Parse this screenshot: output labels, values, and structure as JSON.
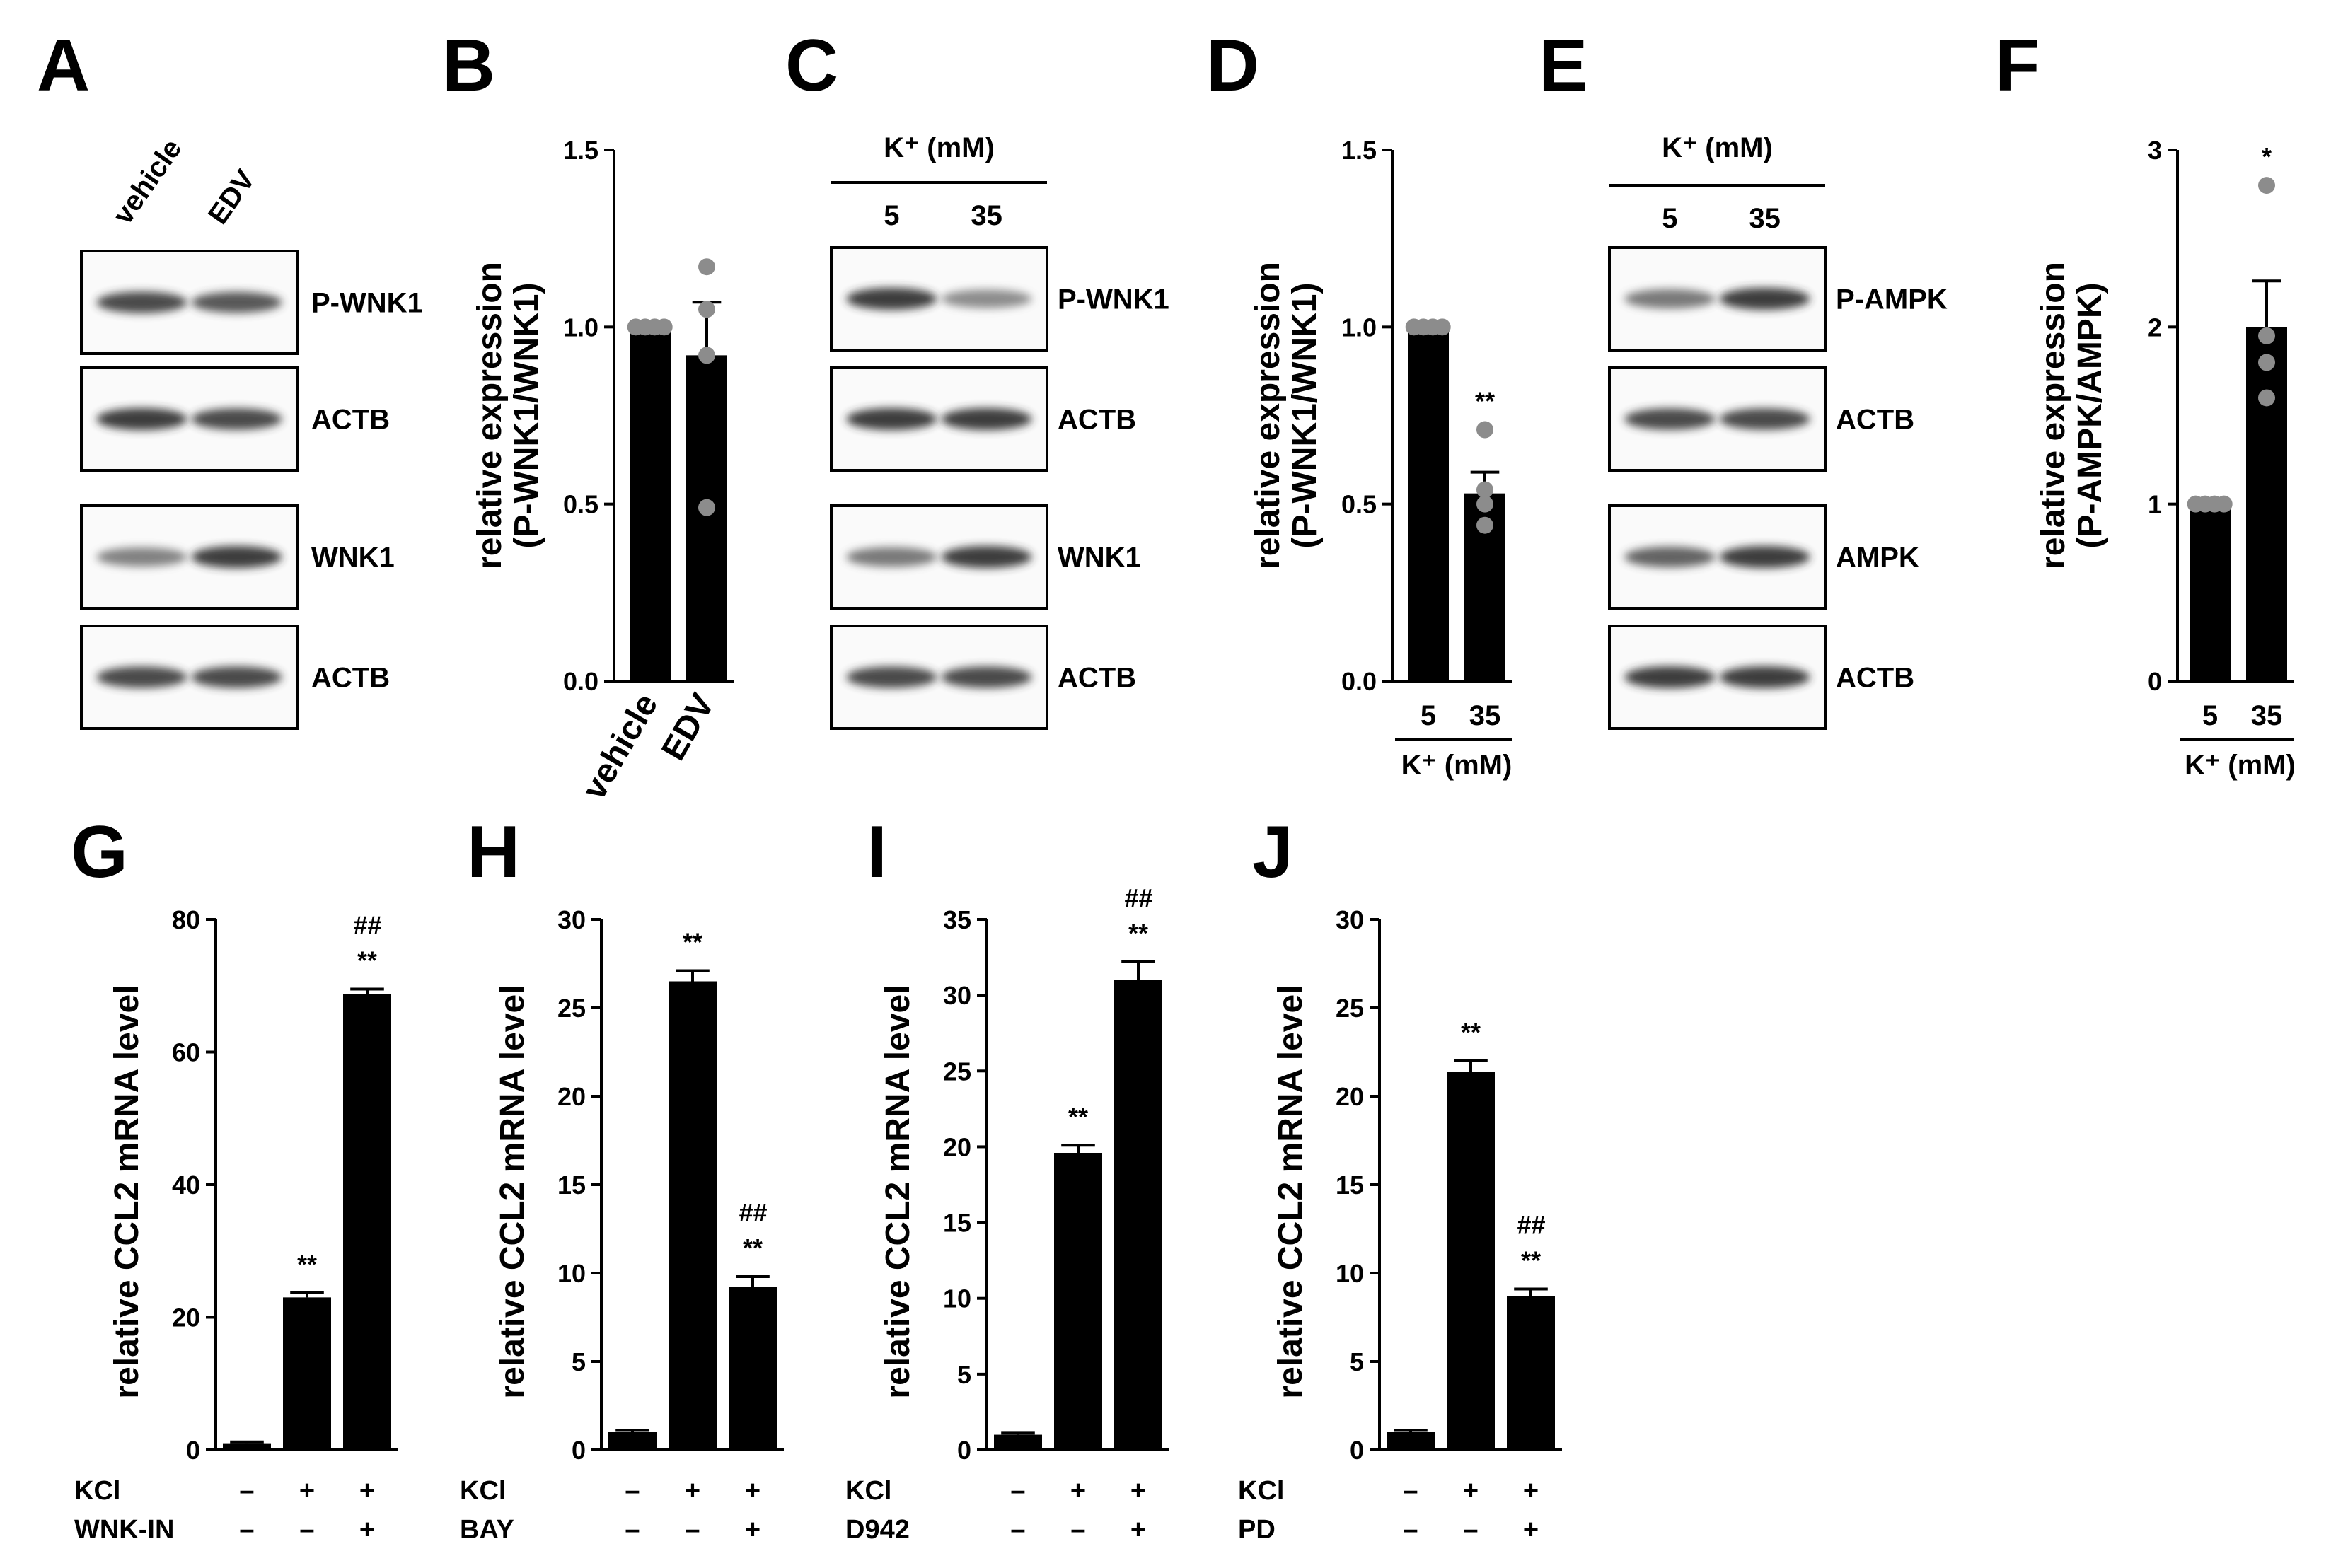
{
  "panel_letters": [
    "A",
    "B",
    "C",
    "D",
    "E",
    "F",
    "G",
    "H",
    "I",
    "J"
  ],
  "blots": {
    "A": {
      "lanes": [
        "vehicle",
        "EDV"
      ],
      "bands": [
        {
          "label": "P-WNK1",
          "intensity": [
            0.9,
            0.85
          ]
        },
        {
          "label": "ACTB",
          "intensity": [
            0.95,
            0.9
          ]
        },
        {
          "label": "WNK1",
          "intensity": [
            0.65,
            0.95
          ]
        },
        {
          "label": "ACTB",
          "intensity": [
            0.9,
            0.9
          ]
        }
      ]
    },
    "C": {
      "header": "K⁺ (mM)",
      "lanes": [
        "5",
        "35"
      ],
      "bands": [
        {
          "label": "P-WNK1",
          "intensity": [
            0.95,
            0.6
          ]
        },
        {
          "label": "ACTB",
          "intensity": [
            0.95,
            0.95
          ]
        },
        {
          "label": "WNK1",
          "intensity": [
            0.7,
            0.95
          ]
        },
        {
          "label": "ACTB",
          "intensity": [
            0.9,
            0.9
          ]
        }
      ]
    },
    "E": {
      "header": "K⁺ (mM)",
      "lanes": [
        "5",
        "35"
      ],
      "bands": [
        {
          "label": "P-AMPK",
          "intensity": [
            0.7,
            0.95
          ]
        },
        {
          "label": "ACTB",
          "intensity": [
            0.9,
            0.9
          ]
        },
        {
          "label": "AMPK",
          "intensity": [
            0.8,
            0.95
          ]
        },
        {
          "label": "ACTB",
          "intensity": [
            0.95,
            0.95
          ]
        }
      ]
    }
  },
  "chart_data": [
    {
      "panel": "B",
      "type": "bar",
      "ylabel": "relative expression",
      "ylabel2": "(P-WNK1/WNK1)",
      "ylim": [
        0,
        1.5
      ],
      "yticks": [
        "0.0",
        "0.5",
        "1.0",
        "1.5"
      ],
      "ytick_values": [
        0,
        0.5,
        1.0,
        1.5
      ],
      "categories": [
        "vehicle",
        "EDV"
      ],
      "rotated_xlabels": true,
      "values": [
        1.0,
        0.92
      ],
      "errors": [
        0,
        0.15
      ],
      "points": [
        [
          1,
          1,
          1,
          1
        ],
        [
          1.17,
          1.05,
          0.92,
          0.49
        ]
      ],
      "significance": [
        "",
        ""
      ],
      "hash": [
        "",
        ""
      ]
    },
    {
      "panel": "D",
      "type": "bar",
      "ylabel": "relative expression",
      "ylabel2": "(P-WNK1/WNK1)",
      "ylim": [
        0,
        1.5
      ],
      "yticks": [
        "0.0",
        "0.5",
        "1.0",
        "1.5"
      ],
      "ytick_values": [
        0,
        0.5,
        1.0,
        1.5
      ],
      "categories": [
        "5",
        "35"
      ],
      "group_label": "K⁺ (mM)",
      "values": [
        1.0,
        0.53
      ],
      "errors": [
        0,
        0.06
      ],
      "points": [
        [
          1,
          1,
          1,
          1
        ],
        [
          0.71,
          0.54,
          0.5,
          0.44
        ]
      ],
      "significance": [
        "",
        "**"
      ],
      "hash": [
        "",
        ""
      ]
    },
    {
      "panel": "F",
      "type": "bar",
      "ylabel": "relative expression",
      "ylabel2": "(P-AMPK/AMPK)",
      "ylim": [
        0,
        3
      ],
      "yticks": [
        "0",
        "1",
        "2",
        "3"
      ],
      "ytick_values": [
        0,
        1,
        2,
        3
      ],
      "categories": [
        "5",
        "35"
      ],
      "group_label": "K⁺ (mM)",
      "values": [
        1.0,
        2.0
      ],
      "errors": [
        0,
        0.26
      ],
      "points": [
        [
          1,
          1,
          1,
          1
        ],
        [
          2.8,
          1.95,
          1.8,
          1.6
        ]
      ],
      "significance": [
        "",
        "*"
      ],
      "hash": [
        "",
        ""
      ]
    },
    {
      "panel": "G",
      "type": "bar",
      "ylabel": "relative CCL2 mRNA level",
      "ylim": [
        0,
        80
      ],
      "yticks": [
        "0",
        "20",
        "40",
        "60",
        "80"
      ],
      "ytick_values": [
        0,
        20,
        40,
        60,
        80
      ],
      "categories": [
        "1",
        "2",
        "3"
      ],
      "values": [
        1.0,
        23.0,
        68.8
      ],
      "errors": [
        0.2,
        0.7,
        0.7
      ],
      "significance": [
        "",
        "**",
        "**"
      ],
      "hash": [
        "",
        "",
        "##"
      ],
      "conditions": [
        {
          "name": "KCl",
          "signs": [
            "–",
            "+",
            "+"
          ]
        },
        {
          "name": "WNK-IN",
          "signs": [
            "–",
            "–",
            "+"
          ]
        }
      ]
    },
    {
      "panel": "H",
      "type": "bar",
      "ylabel": "relative CCL2 mRNA level",
      "ylim": [
        0,
        30
      ],
      "yticks": [
        "0",
        "5",
        "10",
        "15",
        "20",
        "25",
        "30"
      ],
      "ytick_values": [
        0,
        5,
        10,
        15,
        20,
        25,
        30
      ],
      "categories": [
        "1",
        "2",
        "3"
      ],
      "values": [
        1.0,
        26.5,
        9.2
      ],
      "errors": [
        0.1,
        0.6,
        0.6
      ],
      "significance": [
        "",
        "**",
        "**"
      ],
      "hash": [
        "",
        "",
        "##"
      ],
      "conditions": [
        {
          "name": "KCl",
          "signs": [
            "–",
            "+",
            "+"
          ]
        },
        {
          "name": "BAY",
          "signs": [
            "–",
            "–",
            "+"
          ]
        }
      ]
    },
    {
      "panel": "I",
      "type": "bar",
      "ylabel": "relative CCL2 mRNA level",
      "ylim": [
        0,
        35
      ],
      "yticks": [
        "0",
        "5",
        "10",
        "15",
        "20",
        "25",
        "30",
        "35"
      ],
      "ytick_values": [
        0,
        5,
        10,
        15,
        20,
        25,
        30,
        35
      ],
      "categories": [
        "1",
        "2",
        "3"
      ],
      "values": [
        1.0,
        19.6,
        31.0
      ],
      "errors": [
        0.1,
        0.5,
        1.2
      ],
      "significance": [
        "",
        "**",
        "**"
      ],
      "hash": [
        "",
        "",
        "##"
      ],
      "conditions": [
        {
          "name": "KCl",
          "signs": [
            "–",
            "+",
            "+"
          ]
        },
        {
          "name": "D942",
          "signs": [
            "–",
            "–",
            "+"
          ]
        }
      ]
    },
    {
      "panel": "J",
      "type": "bar",
      "ylabel": "relative CCL2 mRNA level",
      "ylim": [
        0,
        30
      ],
      "yticks": [
        "0",
        "5",
        "10",
        "15",
        "20",
        "25",
        "30"
      ],
      "ytick_values": [
        0,
        5,
        10,
        15,
        20,
        25,
        30
      ],
      "categories": [
        "1",
        "2",
        "3"
      ],
      "values": [
        1.0,
        21.4,
        8.7
      ],
      "errors": [
        0.1,
        0.6,
        0.4
      ],
      "significance": [
        "",
        "**",
        "**"
      ],
      "hash": [
        "",
        "",
        "##"
      ],
      "conditions": [
        {
          "name": "KCl",
          "signs": [
            "–",
            "+",
            "+"
          ]
        },
        {
          "name": "PD",
          "signs": [
            "–",
            "–",
            "+"
          ]
        }
      ]
    }
  ]
}
